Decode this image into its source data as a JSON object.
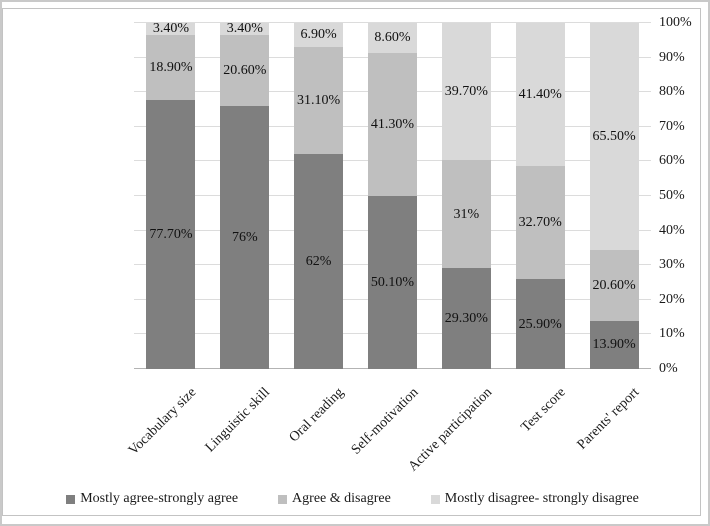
{
  "figure": {
    "background": "#ffffff",
    "border_color": "#c3c3c3",
    "gridline_color": "#dcdcdc",
    "axis_line_color": "#b3b3b3"
  },
  "chart_data": {
    "type": "bar",
    "variant": "100-percent-stacked-column",
    "title": "",
    "xlabel": "",
    "ylabel": "",
    "grid": true,
    "legend_position": "bottom",
    "categories": [
      "Vocabulary size",
      "Linguistic skill",
      "Oral reading",
      "Self-motivation",
      "Active participation",
      "Test score",
      "Parents' report"
    ],
    "series": [
      {
        "name": "Mostly agree-strongly agree",
        "color": "#7f7f7f",
        "values": [
          77.7,
          76,
          62,
          50.1,
          29.3,
          25.9,
          13.9
        ],
        "labels": [
          "77.70%",
          "76%",
          "62%",
          "50.10%",
          "29.30%",
          "25.90%",
          "13.90%"
        ]
      },
      {
        "name": "Agree & disagree",
        "color": "#bfbfbf",
        "values": [
          18.9,
          20.6,
          31.1,
          41.3,
          31,
          32.7,
          20.6
        ],
        "labels": [
          "18.90%",
          "20.60%",
          "31.10%",
          "41.30%",
          "31%",
          "32.70%",
          "20.60%"
        ]
      },
      {
        "name": "Mostly disagree- strongly disagree",
        "color": "#d9d9d9",
        "values": [
          3.4,
          3.4,
          6.9,
          8.6,
          39.7,
          41.4,
          65.5
        ],
        "labels": [
          "3.40%",
          "3.40%",
          "6.90%",
          "8.60%",
          "39.70%",
          "41.40%",
          "65.50%"
        ]
      }
    ],
    "y_axis": {
      "position": "right",
      "min": 0,
      "max": 100,
      "tick_step": 10,
      "ticks": [
        "0%",
        "10%",
        "20%",
        "30%",
        "40%",
        "50%",
        "60%",
        "70%",
        "80%",
        "90%",
        "100%"
      ]
    }
  }
}
